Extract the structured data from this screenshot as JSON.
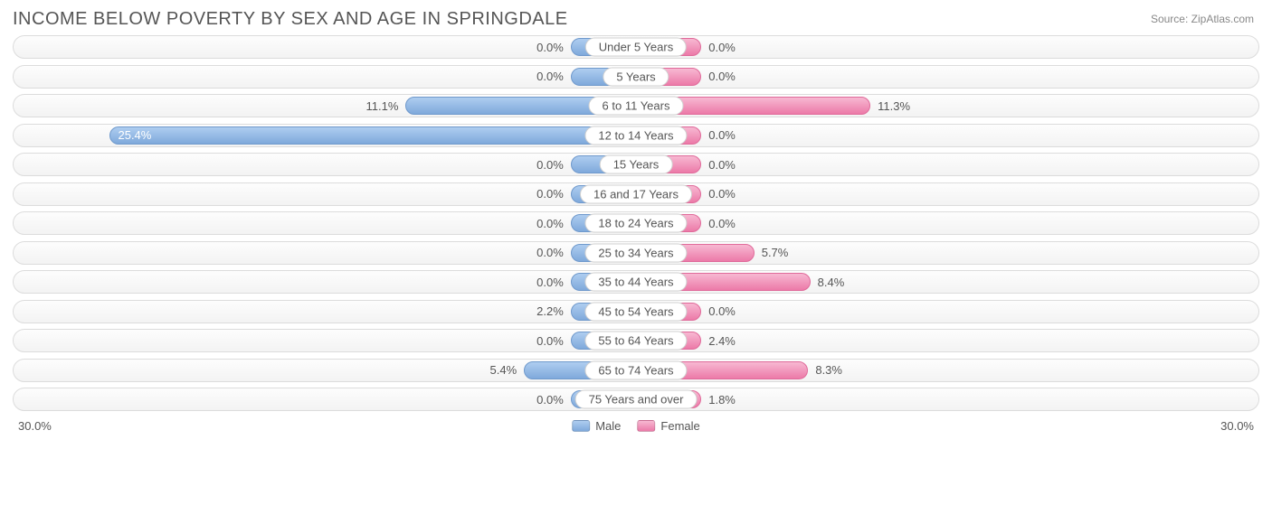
{
  "title": "INCOME BELOW POVERTY BY SEX AND AGE IN SPRINGDALE",
  "source": "Source: ZipAtlas.com",
  "axis_max": 30.0,
  "axis_label_left": "30.0%",
  "axis_label_right": "30.0%",
  "min_bar_pct": 10.5,
  "colors": {
    "male_top": "#aecdf0",
    "male_bottom": "#7fa9db",
    "male_border": "#6f99cc",
    "female_top": "#f7b8d2",
    "female_bottom": "#ec7aa8",
    "female_border": "#e06a9a",
    "track_border": "#dcdcdc",
    "text": "#555555",
    "background": "#ffffff"
  },
  "legend": {
    "male": "Male",
    "female": "Female"
  },
  "rows": [
    {
      "category": "Under 5 Years",
      "male": 0.0,
      "female": 0.0
    },
    {
      "category": "5 Years",
      "male": 0.0,
      "female": 0.0
    },
    {
      "category": "6 to 11 Years",
      "male": 11.1,
      "female": 11.3
    },
    {
      "category": "12 to 14 Years",
      "male": 25.4,
      "female": 0.0
    },
    {
      "category": "15 Years",
      "male": 0.0,
      "female": 0.0
    },
    {
      "category": "16 and 17 Years",
      "male": 0.0,
      "female": 0.0
    },
    {
      "category": "18 to 24 Years",
      "male": 0.0,
      "female": 0.0
    },
    {
      "category": "25 to 34 Years",
      "male": 0.0,
      "female": 5.7
    },
    {
      "category": "35 to 44 Years",
      "male": 0.0,
      "female": 8.4
    },
    {
      "category": "45 to 54 Years",
      "male": 2.2,
      "female": 0.0
    },
    {
      "category": "55 to 64 Years",
      "male": 0.0,
      "female": 2.4
    },
    {
      "category": "65 to 74 Years",
      "male": 5.4,
      "female": 8.3
    },
    {
      "category": "75 Years and over",
      "male": 0.0,
      "female": 1.8
    }
  ]
}
